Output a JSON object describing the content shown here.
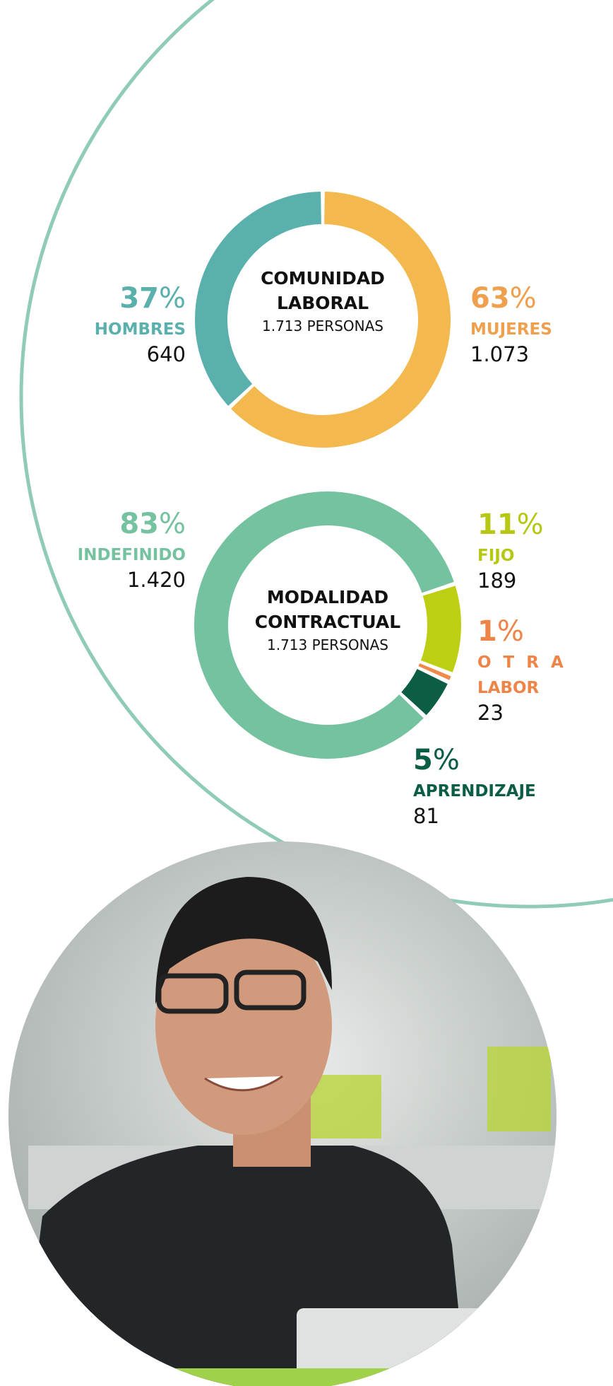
{
  "chart_data": [
    {
      "type": "donut",
      "title_lines": [
        "COMUNIDAD",
        "LABORAL"
      ],
      "subtitle": "1.713 PERSONAS",
      "categories": [
        "MUJERES",
        "HOMBRES"
      ],
      "values": [
        63,
        37
      ],
      "value_labels": [
        "63%",
        "37%"
      ],
      "counts": [
        "1.073",
        "640"
      ],
      "colors": [
        "#f3b94f",
        "#5ab0ad"
      ],
      "label_colors": [
        "#eea04f",
        "#5ab0ad"
      ]
    },
    {
      "type": "donut",
      "title_lines": [
        "MODALIDAD",
        "CONTRACTUAL"
      ],
      "subtitle": "1.713 PERSONAS",
      "categories": [
        "FIJO",
        "OTRA LABOR",
        "APRENDIZAJE",
        "INDEFINIDO"
      ],
      "values": [
        11,
        1,
        5,
        83
      ],
      "value_labels": [
        "11%",
        "1%",
        "5%",
        "83%"
      ],
      "counts": [
        "189",
        "23",
        "81",
        "1.420"
      ],
      "colors": [
        "#bccf12",
        "#ef8a4a",
        "#0b5e45",
        "#74c29f"
      ],
      "label_colors": [
        "#b6c814",
        "#ee8448",
        "#0b5e45",
        "#74c29f"
      ]
    }
  ]
}
